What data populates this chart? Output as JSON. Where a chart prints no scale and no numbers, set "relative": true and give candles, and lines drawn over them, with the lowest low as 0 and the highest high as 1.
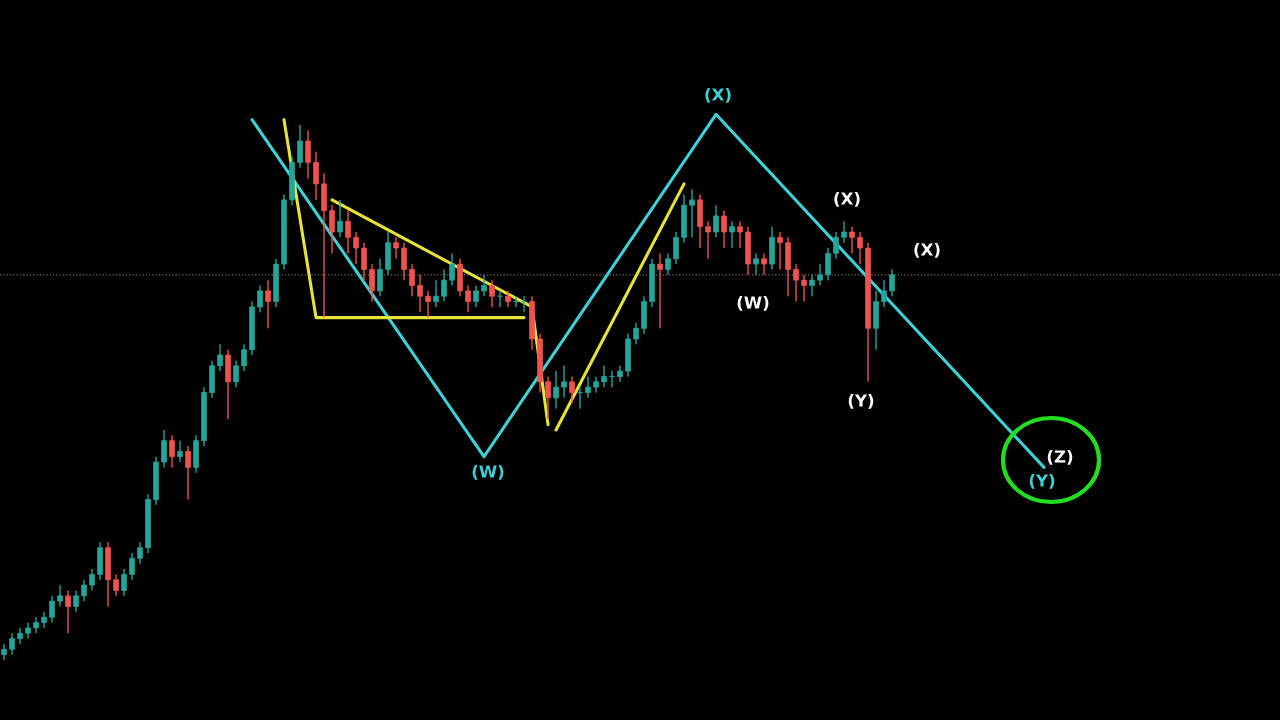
{
  "chart_data": {
    "type": "candlestick",
    "relative": true,
    "categories": [
      null,
      null,
      null,
      null,
      null,
      null,
      null,
      null,
      null,
      null,
      null,
      null,
      null,
      null,
      null,
      null,
      null,
      null,
      null,
      null,
      null,
      null,
      null,
      null,
      null,
      null,
      null,
      null,
      null,
      null,
      null,
      null,
      null,
      null,
      null,
      null,
      null,
      null,
      null,
      null,
      null,
      null,
      null,
      null,
      null,
      null,
      null,
      null,
      null,
      null,
      null,
      null,
      null,
      null,
      null,
      null,
      null,
      null,
      null,
      null,
      null,
      null,
      null,
      null,
      null,
      null,
      null,
      null,
      null,
      null,
      null,
      null,
      null,
      null,
      null,
      null,
      null,
      null,
      null,
      null,
      null,
      null,
      null,
      null,
      null,
      null,
      null,
      null,
      null,
      null,
      null,
      null,
      null,
      null,
      null,
      null,
      null,
      null,
      null,
      null,
      null,
      null,
      null,
      null,
      null,
      null,
      null,
      null,
      null,
      null,
      null,
      null,
      null,
      null,
      null,
      null,
      null,
      null,
      null,
      null,
      null,
      null,
      null,
      null,
      null,
      null,
      null,
      null,
      null,
      null,
      null,
      null,
      null,
      null,
      null,
      null,
      null,
      null,
      null,
      null,
      null,
      null,
      null,
      null,
      null,
      null,
      null,
      null,
      null,
      null,
      null,
      null,
      null,
      null,
      null,
      null,
      null,
      null,
      null,
      null
    ],
    "ohlc": [
      [
        0.01,
        0.03,
        0,
        0.02
      ],
      [
        0.02,
        0.05,
        0.01,
        0.04
      ],
      [
        0.04,
        0.06,
        0.03,
        0.05
      ],
      [
        0.05,
        0.07,
        0.04,
        0.06
      ],
      [
        0.06,
        0.08,
        0.05,
        0.07
      ],
      [
        0.07,
        0.09,
        0.06,
        0.08
      ],
      [
        0.08,
        0.12,
        0.07,
        0.11
      ],
      [
        0.11,
        0.14,
        0.1,
        0.12
      ],
      [
        0.12,
        0.13,
        0.05,
        0.1
      ],
      [
        0.1,
        0.13,
        0.09,
        0.12
      ],
      [
        0.12,
        0.15,
        0.11,
        0.14
      ],
      [
        0.14,
        0.17,
        0.13,
        0.16
      ],
      [
        0.16,
        0.22,
        0.15,
        0.21
      ],
      [
        0.21,
        0.22,
        0.1,
        0.15
      ],
      [
        0.15,
        0.16,
        0.12,
        0.13
      ],
      [
        0.13,
        0.17,
        0.12,
        0.16
      ],
      [
        0.16,
        0.2,
        0.15,
        0.19
      ],
      [
        0.19,
        0.22,
        0.18,
        0.21
      ],
      [
        0.21,
        0.31,
        0.2,
        0.3
      ],
      [
        0.3,
        0.38,
        0.29,
        0.37
      ],
      [
        0.37,
        0.43,
        0.36,
        0.41
      ],
      [
        0.41,
        0.42,
        0.36,
        0.38
      ],
      [
        0.38,
        0.41,
        0.37,
        0.39
      ],
      [
        0.39,
        0.4,
        0.3,
        0.36
      ],
      [
        0.36,
        0.42,
        0.35,
        0.41
      ],
      [
        0.41,
        0.51,
        0.4,
        0.5
      ],
      [
        0.5,
        0.56,
        0.49,
        0.55
      ],
      [
        0.55,
        0.59,
        0.54,
        0.57
      ],
      [
        0.57,
        0.58,
        0.45,
        0.52
      ],
      [
        0.52,
        0.56,
        0.51,
        0.55
      ],
      [
        0.55,
        0.59,
        0.54,
        0.58
      ],
      [
        0.58,
        0.67,
        0.57,
        0.66
      ],
      [
        0.66,
        0.7,
        0.65,
        0.69
      ],
      [
        0.69,
        0.71,
        0.62,
        0.67
      ],
      [
        0.67,
        0.75,
        0.66,
        0.74
      ],
      [
        0.74,
        0.87,
        0.73,
        0.86
      ],
      [
        0.86,
        0.94,
        0.85,
        0.93
      ],
      [
        0.93,
        1,
        0.92,
        0.97
      ],
      [
        0.97,
        0.99,
        0.9,
        0.93
      ],
      [
        0.93,
        0.95,
        0.86,
        0.89
      ],
      [
        0.89,
        0.91,
        0.64,
        0.84
      ],
      [
        0.84,
        0.85,
        0.76,
        0.8
      ],
      [
        0.8,
        0.86,
        0.79,
        0.82
      ],
      [
        0.82,
        0.84,
        0.76,
        0.79
      ],
      [
        0.79,
        0.8,
        0.74,
        0.77
      ],
      [
        0.77,
        0.78,
        0.71,
        0.73
      ],
      [
        0.73,
        0.74,
        0.67,
        0.69
      ],
      [
        0.69,
        0.75,
        0.68,
        0.73
      ],
      [
        0.73,
        0.8,
        0.72,
        0.78
      ],
      [
        0.78,
        0.79,
        0.75,
        0.77
      ],
      [
        0.77,
        0.78,
        0.71,
        0.73
      ],
      [
        0.73,
        0.74,
        0.68,
        0.7
      ],
      [
        0.7,
        0.72,
        0.65,
        0.68
      ],
      [
        0.68,
        0.69,
        0.64,
        0.67
      ],
      [
        0.67,
        0.71,
        0.66,
        0.68
      ],
      [
        0.68,
        0.73,
        0.67,
        0.71
      ],
      [
        0.71,
        0.76,
        0.7,
        0.74
      ],
      [
        0.74,
        0.75,
        0.68,
        0.69
      ],
      [
        0.69,
        0.7,
        0.65,
        0.67
      ],
      [
        0.67,
        0.7,
        0.66,
        0.69
      ],
      [
        0.69,
        0.72,
        0.68,
        0.7
      ],
      [
        0.7,
        0.71,
        0.66,
        0.68
      ],
      [
        0.68,
        0.69,
        0.66,
        0.68
      ],
      [
        0.68,
        0.69,
        0.66,
        0.67
      ],
      [
        0.67,
        0.68,
        0.66,
        0.67
      ],
      [
        0.67,
        0.68,
        0.65,
        0.67
      ],
      [
        0.67,
        0.68,
        0.58,
        0.6
      ],
      [
        0.6,
        0.61,
        0.5,
        0.52
      ],
      [
        0.52,
        0.53,
        0.45,
        0.49
      ],
      [
        0.49,
        0.54,
        0.47,
        0.51
      ],
      [
        0.51,
        0.55,
        0.49,
        0.52
      ],
      [
        0.52,
        0.53,
        0.48,
        0.5
      ],
      [
        0.5,
        0.51,
        0.47,
        0.5
      ],
      [
        0.5,
        0.53,
        0.49,
        0.51
      ],
      [
        0.51,
        0.53,
        0.5,
        0.52
      ],
      [
        0.52,
        0.55,
        0.51,
        0.53
      ],
      [
        0.53,
        0.54,
        0.51,
        0.53
      ],
      [
        0.53,
        0.55,
        0.52,
        0.54
      ],
      [
        0.54,
        0.61,
        0.53,
        0.6
      ],
      [
        0.6,
        0.63,
        0.59,
        0.62
      ],
      [
        0.62,
        0.68,
        0.61,
        0.67
      ],
      [
        0.67,
        0.75,
        0.66,
        0.74
      ],
      [
        0.74,
        0.76,
        0.62,
        0.73
      ],
      [
        0.73,
        0.76,
        0.72,
        0.75
      ],
      [
        0.75,
        0.8,
        0.74,
        0.79
      ],
      [
        0.79,
        0.87,
        0.78,
        0.85
      ],
      [
        0.85,
        0.88,
        0.79,
        0.86
      ],
      [
        0.86,
        0.87,
        0.77,
        0.81
      ],
      [
        0.81,
        0.82,
        0.75,
        0.8
      ],
      [
        0.8,
        0.85,
        0.79,
        0.83
      ],
      [
        0.83,
        0.84,
        0.77,
        0.8
      ],
      [
        0.8,
        0.82,
        0.77,
        0.81
      ],
      [
        0.81,
        0.82,
        0.77,
        0.8
      ],
      [
        0.8,
        0.81,
        0.72,
        0.74
      ],
      [
        0.74,
        0.76,
        0.72,
        0.75
      ],
      [
        0.75,
        0.76,
        0.72,
        0.74
      ],
      [
        0.74,
        0.81,
        0.73,
        0.79
      ],
      [
        0.79,
        0.8,
        0.73,
        0.78
      ],
      [
        0.78,
        0.79,
        0.68,
        0.73
      ],
      [
        0.73,
        0.74,
        0.67,
        0.71
      ],
      [
        0.71,
        0.72,
        0.67,
        0.7
      ],
      [
        0.7,
        0.72,
        0.68,
        0.71
      ],
      [
        0.71,
        0.74,
        0.7,
        0.72
      ],
      [
        0.72,
        0.77,
        0.71,
        0.76
      ],
      [
        0.76,
        0.8,
        0.75,
        0.79
      ],
      [
        0.79,
        0.82,
        0.78,
        0.8
      ],
      [
        0.8,
        0.81,
        0.76,
        0.79
      ],
      [
        0.79,
        0.8,
        0.74,
        0.77
      ],
      [
        0.77,
        0.78,
        0.52,
        0.62
      ],
      [
        0.62,
        0.69,
        0.58,
        0.67
      ],
      [
        0.67,
        0.71,
        0.66,
        0.69
      ],
      [
        0.69,
        0.73,
        0.68,
        0.72
      ],
      null,
      null,
      null,
      null,
      null,
      null,
      null,
      null,
      null,
      null,
      null,
      null,
      null,
      null,
      null,
      null,
      null,
      null,
      null,
      null,
      null,
      null,
      null,
      null,
      null,
      null,
      null,
      null,
      null,
      null,
      null,
      null,
      null,
      null,
      null,
      null,
      null,
      null,
      null,
      null,
      null,
      null,
      null,
      null,
      null,
      null,
      null,
      null
    ],
    "series": [
      {
        "type": "line",
        "color": "#3fd0d4",
        "values": [
          null,
          null,
          null,
          null,
          null,
          null,
          null,
          null,
          null,
          null,
          null,
          null,
          null,
          null,
          null,
          null,
          null,
          null,
          null,
          null,
          null,
          null,
          null,
          null,
          null,
          null,
          null,
          null,
          null,
          null,
          null,
          1.01,
          null,
          null,
          null,
          null,
          null,
          null,
          null,
          null,
          null,
          null,
          null,
          null,
          null,
          null,
          null,
          null,
          null,
          null,
          null,
          null,
          null,
          null,
          null,
          null,
          null,
          null,
          null,
          null,
          0.38,
          null,
          null,
          null,
          null,
          null,
          null,
          null,
          null,
          null,
          null,
          null,
          null,
          null,
          null,
          null,
          null,
          null,
          null,
          null,
          null,
          null,
          null,
          null,
          null,
          null,
          null,
          null,
          null,
          1.02,
          null,
          null,
          null,
          null,
          null,
          null,
          null,
          null,
          null,
          null,
          null,
          null,
          null,
          null,
          null,
          null,
          null,
          null,
          null,
          null,
          null,
          null,
          null,
          null,
          null,
          null,
          null,
          null,
          null,
          null,
          null,
          null,
          null,
          null,
          null,
          null,
          null,
          null,
          null,
          null,
          0.36,
          null,
          null,
          null,
          null,
          null,
          null,
          null,
          null,
          null,
          null,
          null,
          null,
          null,
          null,
          null,
          null,
          null,
          null,
          null,
          null,
          null,
          null,
          null,
          null,
          null,
          null,
          null,
          null,
          null
        ]
      },
      {
        "type": "line",
        "color": "#e6e33a",
        "values": [
          null,
          null,
          null,
          null,
          null,
          null,
          null,
          null,
          null,
          null,
          null,
          null,
          null,
          null,
          null,
          null,
          null,
          null,
          null,
          null,
          null,
          null,
          null,
          null,
          null,
          null,
          null,
          null,
          null,
          null,
          null,
          null,
          null,
          null,
          null,
          1.01,
          null,
          null,
          null,
          0.64,
          null,
          null,
          null,
          null,
          null,
          null,
          null,
          null,
          null,
          null,
          null,
          null,
          null,
          null,
          null,
          null,
          null,
          null,
          null,
          null,
          null,
          null,
          null,
          null,
          null,
          0.64,
          null,
          null,
          null,
          null,
          null,
          null,
          null,
          null,
          null,
          null,
          null,
          null,
          null,
          null,
          null,
          null,
          null,
          null,
          null,
          null,
          null,
          null,
          null,
          null,
          null,
          null,
          null,
          null,
          null,
          null,
          null,
          null,
          null,
          null,
          null,
          null,
          null,
          null,
          null,
          null,
          null,
          null,
          null,
          null,
          null,
          null,
          null,
          null,
          null,
          null,
          null,
          null,
          null,
          null,
          null,
          null,
          null,
          null,
          null,
          null,
          null,
          null,
          null,
          null,
          null,
          null,
          null,
          null,
          null,
          null,
          null,
          null,
          null,
          null,
          null,
          null,
          null,
          null,
          null,
          null,
          null,
          null,
          null,
          null,
          null,
          null,
          null,
          null,
          null,
          null,
          null,
          null,
          null,
          null
        ]
      },
      {
        "type": "line",
        "color": "#e6e33a",
        "values": [
          null,
          null,
          null,
          null,
          null,
          null,
          null,
          null,
          null,
          null,
          null,
          null,
          null,
          null,
          null,
          null,
          null,
          null,
          null,
          null,
          null,
          null,
          null,
          null,
          null,
          null,
          null,
          null,
          null,
          null,
          null,
          null,
          null,
          null,
          null,
          null,
          null,
          null,
          null,
          null,
          null,
          0.86,
          null,
          null,
          null,
          null,
          null,
          null,
          null,
          null,
          null,
          null,
          null,
          null,
          null,
          null,
          null,
          null,
          null,
          null,
          null,
          null,
          null,
          null,
          null,
          null,
          0.66,
          null,
          0.44,
          null,
          null,
          null,
          null,
          null,
          null,
          null,
          null,
          null,
          null,
          null,
          null,
          null,
          null,
          null,
          null,
          null,
          null,
          null,
          null,
          null,
          null,
          null,
          null,
          null,
          null,
          null,
          null,
          null,
          null,
          null,
          null,
          null,
          null,
          null,
          null,
          null,
          null,
          null,
          null,
          null,
          null,
          null,
          null,
          null,
          null,
          null,
          null,
          null,
          null,
          null,
          null,
          null,
          null,
          null,
          null,
          null,
          null,
          null,
          null,
          null,
          null,
          null,
          null,
          null,
          null,
          null,
          null,
          null,
          null,
          null,
          null,
          null,
          null,
          null,
          null,
          null,
          null,
          null,
          null,
          null,
          null,
          null,
          null,
          null,
          null,
          null,
          null,
          null,
          null,
          null
        ]
      },
      {
        "type": "line",
        "color": "#e6e33a",
        "values": [
          null,
          null,
          null,
          null,
          null,
          null,
          null,
          null,
          null,
          null,
          null,
          null,
          null,
          null,
          null,
          null,
          null,
          null,
          null,
          null,
          null,
          null,
          null,
          null,
          null,
          null,
          null,
          null,
          null,
          null,
          null,
          null,
          null,
          null,
          null,
          null,
          null,
          null,
          null,
          null,
          null,
          null,
          null,
          null,
          null,
          null,
          null,
          null,
          null,
          null,
          null,
          null,
          null,
          null,
          null,
          null,
          null,
          null,
          null,
          null,
          null,
          null,
          null,
          null,
          null,
          null,
          null,
          null,
          null,
          0.43,
          null,
          null,
          null,
          null,
          null,
          null,
          null,
          null,
          null,
          null,
          null,
          null,
          null,
          null,
          null,
          0.89,
          null,
          null,
          null,
          null,
          null,
          null,
          null,
          null,
          null,
          null,
          null,
          null,
          null,
          null,
          null,
          null,
          null,
          null,
          null,
          null,
          null,
          null,
          null,
          null,
          null,
          null,
          null,
          null,
          null,
          null,
          null,
          null,
          null,
          null,
          null,
          null,
          null,
          null,
          null,
          null,
          null,
          null,
          null,
          null,
          null,
          null,
          null,
          null,
          null,
          null,
          null,
          null,
          null,
          null,
          null,
          null,
          null,
          null,
          null,
          null,
          null,
          null,
          null,
          null,
          null,
          null,
          null,
          null,
          null,
          null,
          null,
          null,
          null,
          null
        ]
      }
    ],
    "ref_lines": [
      {
        "axis": "y",
        "value": 0.72,
        "color": "#6b6e78",
        "line_style": "dotted"
      }
    ],
    "annotations": [
      "(X)",
      "(W)",
      "(X)",
      "(W)",
      "(Y)",
      "(X)",
      "(Z)",
      "(Y)"
    ]
  }
}
